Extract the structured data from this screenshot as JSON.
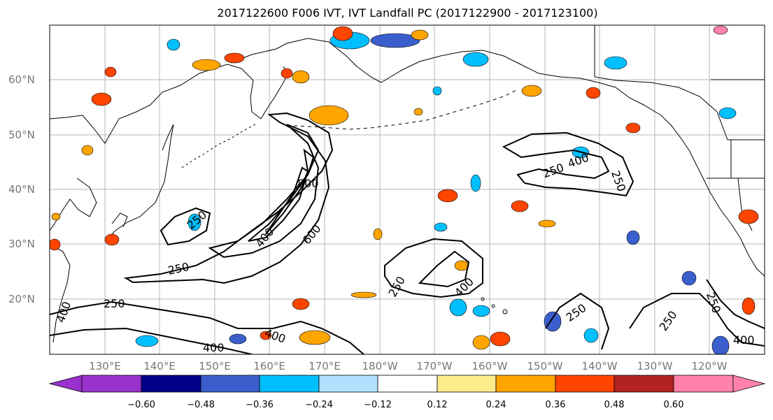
{
  "title": "2017122600 F006 IVT, IVT Landfall PC (2017122900 - 2017123100)",
  "lat_labels": [
    "20°N",
    "30°N",
    "40°N",
    "50°N",
    "60°N"
  ],
  "lon_labels": [
    "130°E",
    "140°E",
    "150°E",
    "160°E",
    "170°E",
    "180°W",
    "170°W",
    "160°W",
    "150°W",
    "140°W",
    "130°W",
    "120°W"
  ],
  "contour_labels": [
    "250",
    "400",
    "600",
    "800"
  ],
  "colorbar": {
    "ticks": [
      "−0.60",
      "−0.48",
      "−0.36",
      "−0.24",
      "−0.12",
      "0.12",
      "0.24",
      "0.36",
      "0.48",
      "0.60"
    ],
    "colors": [
      "#9932cc",
      "#00008b",
      "#3a5fcd",
      "#00bfff",
      "#b0e2ff",
      "#ffffff",
      "#ffec8b",
      "#ffa500",
      "#ff4500",
      "#b22222",
      "#ff82ab"
    ]
  }
}
